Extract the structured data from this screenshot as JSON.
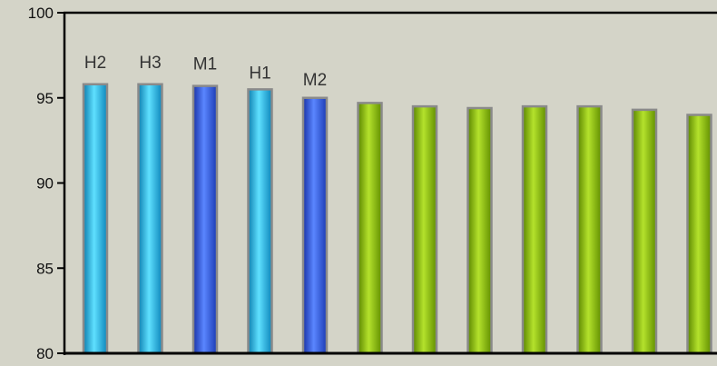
{
  "chart_data": {
    "type": "bar",
    "title": "",
    "xlabel": "",
    "ylabel": "",
    "ylim": [
      80,
      100
    ],
    "yticks": [
      80,
      85,
      90,
      95,
      100
    ],
    "grid": false,
    "legend": "none",
    "bars": [
      {
        "label": "H2",
        "value": 95.8,
        "color": "#22b8e6"
      },
      {
        "label": "H3",
        "value": 95.8,
        "color": "#22b8e6"
      },
      {
        "label": "M1",
        "value": 95.7,
        "color": "#2a55e0"
      },
      {
        "label": "H1",
        "value": 95.5,
        "color": "#22b8e6"
      },
      {
        "label": "M2",
        "value": 95.0,
        "color": "#2a55e0"
      },
      {
        "label": "",
        "value": 94.7,
        "color": "#8cc400"
      },
      {
        "label": "",
        "value": 94.5,
        "color": "#8cc400"
      },
      {
        "label": "",
        "value": 94.4,
        "color": "#8cc400"
      },
      {
        "label": "",
        "value": 94.5,
        "color": "#8cc400"
      },
      {
        "label": "",
        "value": 94.5,
        "color": "#8cc400"
      },
      {
        "label": "",
        "value": 94.3,
        "color": "#8cc400"
      },
      {
        "label": "",
        "value": 94.0,
        "color": "#8cc400"
      }
    ]
  }
}
